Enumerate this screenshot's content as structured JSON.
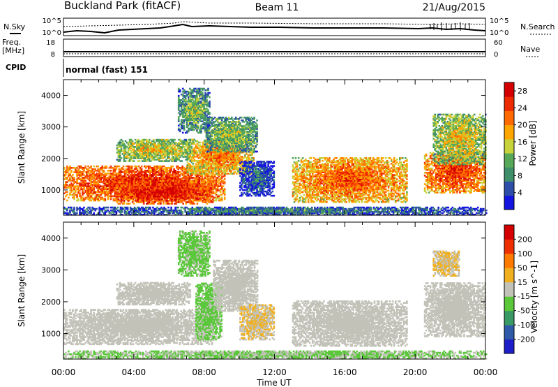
{
  "header": {
    "station": "Buckland Park (fitACF)",
    "beam": "Beam 11",
    "date": "21/Aug/2015"
  },
  "top_panels": {
    "nsky_label": "N.Sky",
    "nsearch_label": "N.Search",
    "noise_ticks": [
      "10^5",
      "10^0"
    ],
    "freq_label_1": "Freq.",
    "freq_label_2": "[MHz]",
    "freq_ticks": [
      "18",
      "8"
    ],
    "nave_label": "Nave",
    "nave_ticks": [
      "60",
      "0"
    ],
    "cpid_label": "CPID",
    "cpid_text": "normal (fast) 151"
  },
  "colors": {
    "power": [
      "#1515e0",
      "#2d4fa8",
      "#3e8f6a",
      "#58a85a",
      "#c8d23a",
      "#ffa500",
      "#ff6a00",
      "#ee2a00",
      "#d40000"
    ],
    "velocity": [
      "#1e1ec8",
      "#2e5aa8",
      "#3a9a66",
      "#5ac83a",
      "#c2c2b8",
      "#f0b020",
      "#ff7a00",
      "#ee3000",
      "#d40000"
    ],
    "ground": "#a0a090"
  },
  "chart_data": [
    {
      "type": "heatmap",
      "title": "",
      "xlabel": "Time UT",
      "ylabel": "Slant Range [km]",
      "x_ticks": [
        "00:00",
        "04:00",
        "08:00",
        "12:00",
        "16:00",
        "20:00",
        "00:00"
      ],
      "y_ticks": [
        "1000",
        "2000",
        "3000",
        "4000"
      ],
      "xlim_hours": [
        0,
        24
      ],
      "ylim_km": [
        200,
        4500
      ],
      "colorbar_label": "Power [dB]",
      "colorbar_ticks": [
        "4",
        "8",
        "12",
        "16",
        "20",
        "24",
        "28"
      ],
      "colorbar_range": [
        0,
        30
      ],
      "regions": [
        {
          "t0": 0.0,
          "t1": 9.2,
          "r0": 650,
          "r1": 1750,
          "value": 27
        },
        {
          "t0": 3.0,
          "t1": 8.5,
          "r0": 550,
          "r1": 1300,
          "value": 29
        },
        {
          "t0": 7.0,
          "t1": 10.8,
          "r0": 1500,
          "r1": 2600,
          "value": 22
        },
        {
          "t0": 3.0,
          "t1": 7.2,
          "r0": 1900,
          "r1": 2600,
          "value": 18
        },
        {
          "t0": 8.0,
          "t1": 11.0,
          "r0": 2200,
          "r1": 3300,
          "value": 15
        },
        {
          "t0": 6.5,
          "t1": 8.3,
          "r0": 2800,
          "r1": 4200,
          "value": 14
        },
        {
          "t0": 10.0,
          "t1": 12.0,
          "r0": 800,
          "r1": 1900,
          "value": 8
        },
        {
          "t0": 13.0,
          "t1": 19.5,
          "r0": 600,
          "r1": 2000,
          "value": 24
        },
        {
          "t0": 20.5,
          "t1": 24.0,
          "r0": 900,
          "r1": 2200,
          "value": 26
        },
        {
          "t0": 21.0,
          "t1": 24.0,
          "r0": 1800,
          "r1": 3400,
          "value": 18
        },
        {
          "t0": 0.0,
          "t1": 24.0,
          "r0": 200,
          "r1": 450,
          "value": 10
        }
      ]
    },
    {
      "type": "heatmap",
      "title": "",
      "xlabel": "Time UT",
      "ylabel": "Slant Range [km]",
      "x_ticks": [
        "00:00",
        "04:00",
        "08:00",
        "12:00",
        "16:00",
        "20:00",
        "00:00"
      ],
      "y_ticks": [
        "1000",
        "2000",
        "3000",
        "4000"
      ],
      "xlim_hours": [
        0,
        24
      ],
      "ylim_km": [
        200,
        4500
      ],
      "colorbar_label": "Velocity [m s^-1]",
      "colorbar_ticks": [
        "200",
        "100",
        "50",
        "15",
        "-15",
        "-50",
        "-100",
        "-200"
      ],
      "colorbar_range": [
        -250,
        250
      ],
      "regions": [
        {
          "t0": 0.0,
          "t1": 8.5,
          "r0": 650,
          "r1": 1750,
          "value": 0
        },
        {
          "t0": 3.0,
          "t1": 7.2,
          "r0": 1900,
          "r1": 2600,
          "value": 0
        },
        {
          "t0": 7.5,
          "t1": 9.0,
          "r0": 800,
          "r1": 2600,
          "value": -40
        },
        {
          "t0": 6.5,
          "t1": 8.3,
          "r0": 2800,
          "r1": 4200,
          "value": -40
        },
        {
          "t0": 8.5,
          "t1": 11.0,
          "r0": 1700,
          "r1": 3300,
          "value": 0
        },
        {
          "t0": 10.0,
          "t1": 12.0,
          "r0": 800,
          "r1": 1900,
          "value": 30
        },
        {
          "t0": 13.0,
          "t1": 19.5,
          "r0": 600,
          "r1": 2000,
          "value": 0
        },
        {
          "t0": 20.5,
          "t1": 24.0,
          "r0": 900,
          "r1": 2600,
          "value": 0
        },
        {
          "t0": 21.0,
          "t1": 22.5,
          "r0": 2800,
          "r1": 3600,
          "value": 30
        },
        {
          "t0": 0.0,
          "t1": 24.0,
          "r0": 200,
          "r1": 450,
          "value": -30
        }
      ]
    }
  ]
}
